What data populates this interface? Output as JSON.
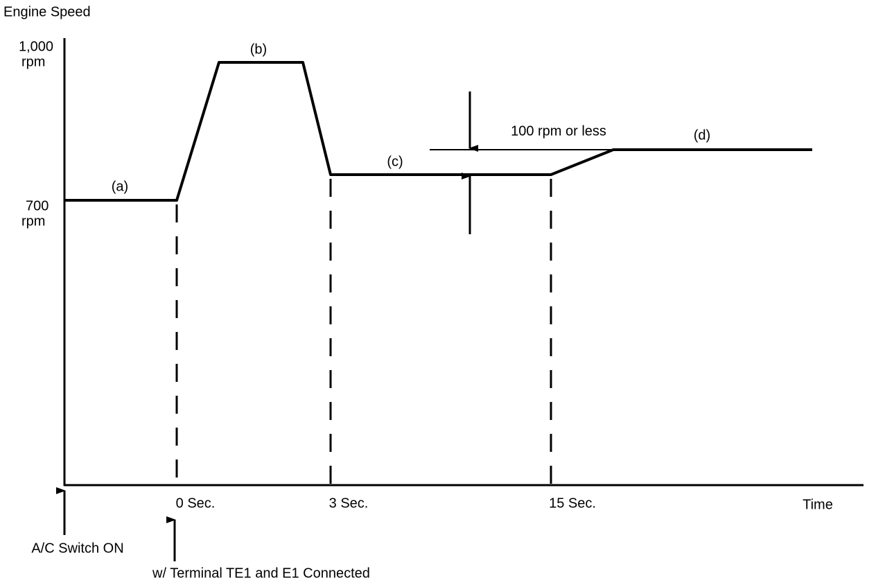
{
  "axis": {
    "y_label": "Engine Speed",
    "time_label": "Time"
  },
  "levels": [
    {
      "value": "1,000",
      "unit": "rpm"
    },
    {
      "value": "700",
      "unit": "rpm"
    }
  ],
  "phases": [
    "(a)",
    "(b)",
    "(c)",
    "(d)"
  ],
  "tolerance": "100 rpm or less",
  "time_marks": [
    "0 Sec.",
    "3 Sec.",
    "15 Sec."
  ],
  "events": [
    "A/C Switch ON",
    "w/ Terminal TE1 and E1 Connected"
  ]
}
